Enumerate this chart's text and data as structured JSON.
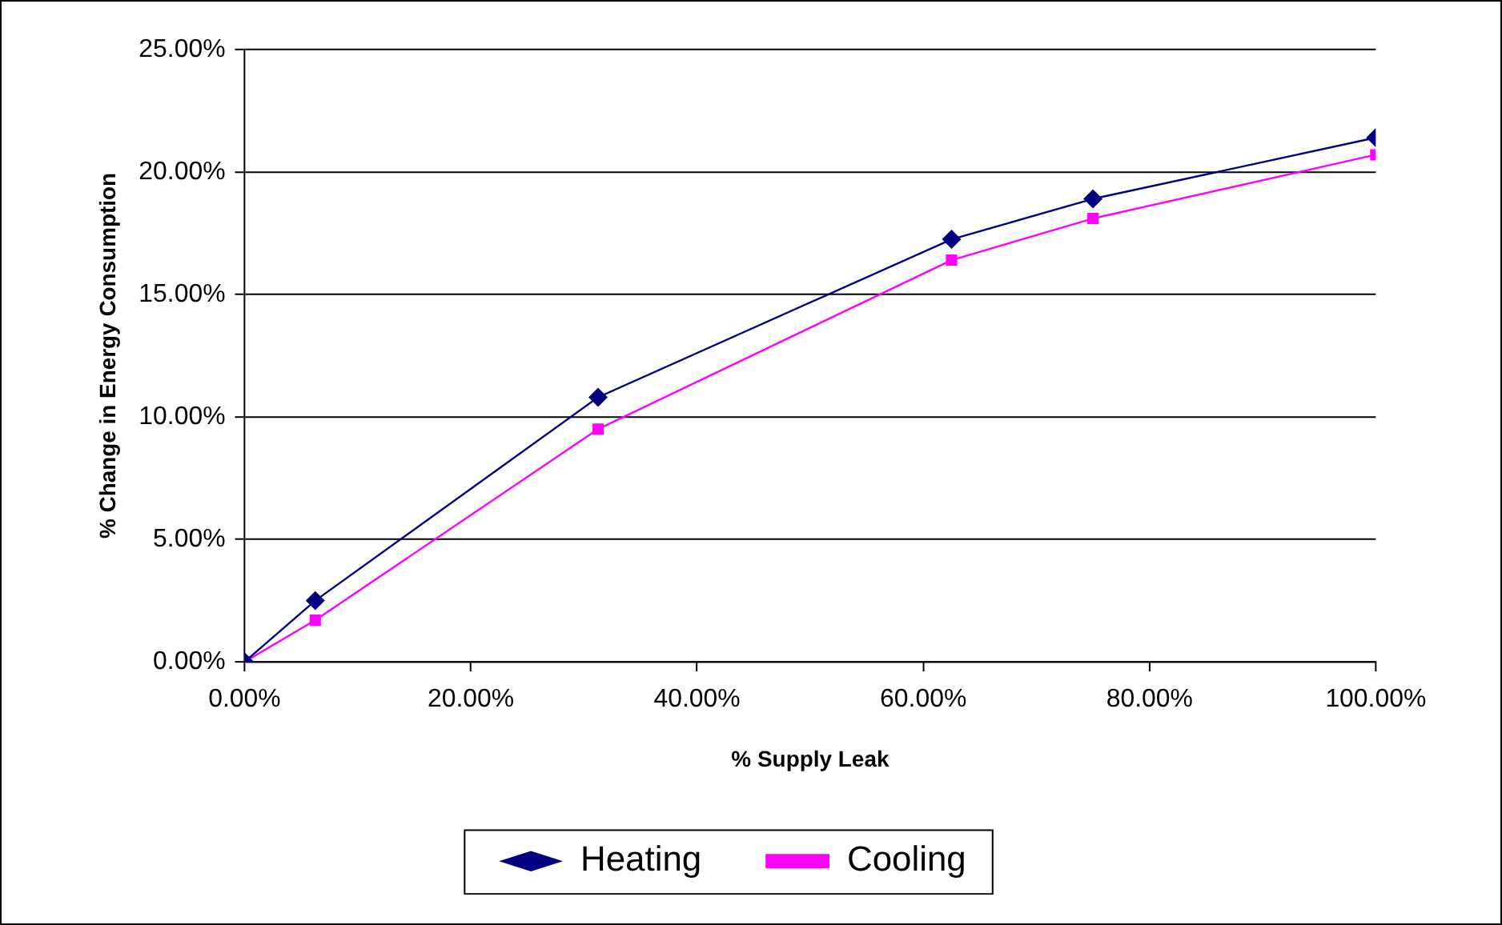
{
  "chart_data": {
    "type": "line",
    "xlabel": "% Supply Leak",
    "ylabel": "% Change in Energy Consumption",
    "x": [
      0,
      6.25,
      31.25,
      62.5,
      75,
      100
    ],
    "series": [
      {
        "name": "Heating",
        "color": "#000080",
        "marker": "diamond",
        "values": [
          0,
          2.5,
          10.8,
          17.25,
          18.9,
          21.4
        ]
      },
      {
        "name": "Cooling",
        "color": "#ff00ff",
        "marker": "square",
        "values": [
          0,
          1.7,
          9.5,
          16.4,
          18.1,
          20.7
        ]
      }
    ],
    "xlim": [
      0,
      100
    ],
    "xticks": [
      {
        "value": 0,
        "label": "0.00%"
      },
      {
        "value": 20,
        "label": "20.00%"
      },
      {
        "value": 40,
        "label": "40.00%"
      },
      {
        "value": 60,
        "label": "60.00%"
      },
      {
        "value": 80,
        "label": "80.00%"
      },
      {
        "value": 100,
        "label": "100.00%"
      }
    ],
    "ylim": [
      0,
      25
    ],
    "yticks": [
      {
        "value": 0,
        "label": "0.00%"
      },
      {
        "value": 5,
        "label": "5.00%"
      },
      {
        "value": 10,
        "label": "10.00%"
      },
      {
        "value": 15,
        "label": "15.00%"
      },
      {
        "value": 20,
        "label": "20.00%"
      },
      {
        "value": 25,
        "label": "25.00%"
      }
    ],
    "grid": "y",
    "legend": "bottom",
    "line_style": "solid"
  }
}
